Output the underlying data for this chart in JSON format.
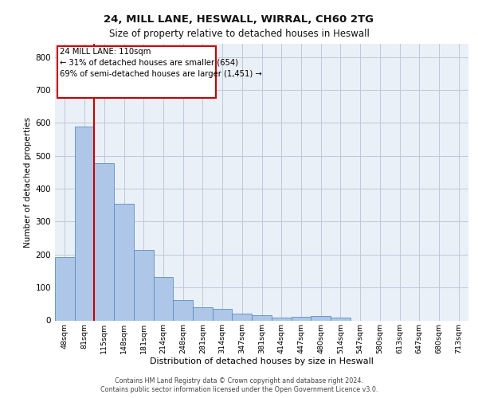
{
  "title_line1": "24, MILL LANE, HESWALL, WIRRAL, CH60 2TG",
  "title_line2": "Size of property relative to detached houses in Heswall",
  "xlabel": "Distribution of detached houses by size in Heswall",
  "ylabel": "Number of detached properties",
  "categories": [
    "48sqm",
    "81sqm",
    "115sqm",
    "148sqm",
    "181sqm",
    "214sqm",
    "248sqm",
    "281sqm",
    "314sqm",
    "347sqm",
    "381sqm",
    "414sqm",
    "447sqm",
    "480sqm",
    "514sqm",
    "547sqm",
    "580sqm",
    "613sqm",
    "647sqm",
    "680sqm",
    "713sqm"
  ],
  "values": [
    192,
    588,
    478,
    355,
    215,
    132,
    62,
    40,
    35,
    20,
    15,
    8,
    12,
    13,
    9,
    0,
    0,
    0,
    0,
    0,
    0
  ],
  "bar_color": "#aec6e8",
  "bar_edge_color": "#5a8fc0",
  "grid_color": "#c0c8d8",
  "background_color": "#eaf0f8",
  "vline_pos": 1.5,
  "vline_color": "#cc0000",
  "ylim": [
    0,
    840
  ],
  "yticks": [
    0,
    100,
    200,
    300,
    400,
    500,
    600,
    700,
    800
  ],
  "annotation_text_line1": "24 MILL LANE: 110sqm",
  "annotation_text_line2": "← 31% of detached houses are smaller (654)",
  "annotation_text_line3": "69% of semi-detached houses are larger (1,451) →",
  "ann_box_color": "#cc0000",
  "footer_line1": "Contains HM Land Registry data © Crown copyright and database right 2024.",
  "footer_line2": "Contains public sector information licensed under the Open Government Licence v3.0."
}
